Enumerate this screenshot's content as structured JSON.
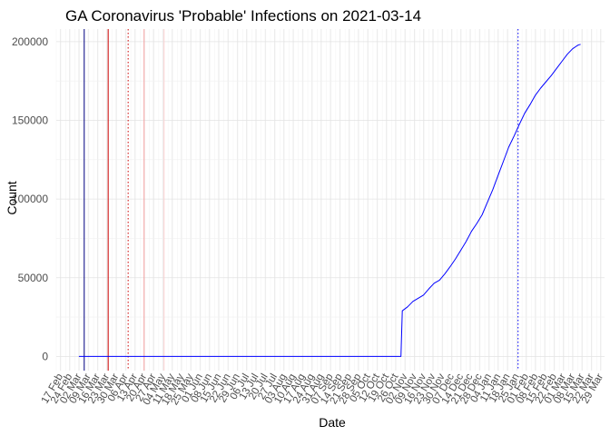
{
  "chart_data": {
    "type": "line",
    "title": "GA Coronavirus 'Probable' Infections on 2021-03-14",
    "xlabel": "Date",
    "ylabel": "Count",
    "xlim": [
      "2020-02-14",
      "2021-04-01"
    ],
    "ylim": [
      -9000,
      208000
    ],
    "grid": true,
    "legend": "none",
    "y_ticks": [
      0,
      50000,
      100000,
      150000,
      200000
    ],
    "x_ticks": [
      {
        "date": "2020-02-17",
        "label": "17 Feb"
      },
      {
        "date": "2020-02-24",
        "label": "24 Feb"
      },
      {
        "date": "2020-03-02",
        "label": "02 Mar"
      },
      {
        "date": "2020-03-09",
        "label": "09 Mar"
      },
      {
        "date": "2020-03-16",
        "label": "16 Mar"
      },
      {
        "date": "2020-03-23",
        "label": "23 Mar"
      },
      {
        "date": "2020-03-30",
        "label": "30 Mar"
      },
      {
        "date": "2020-04-06",
        "label": "06 Apr"
      },
      {
        "date": "2020-04-13",
        "label": "13 Apr"
      },
      {
        "date": "2020-04-20",
        "label": "20 Apr"
      },
      {
        "date": "2020-04-27",
        "label": "27 Apr"
      },
      {
        "date": "2020-05-04",
        "label": "04 May"
      },
      {
        "date": "2020-05-11",
        "label": "11 May"
      },
      {
        "date": "2020-05-18",
        "label": "18 May"
      },
      {
        "date": "2020-05-25",
        "label": "25 May"
      },
      {
        "date": "2020-06-01",
        "label": "01 Jun"
      },
      {
        "date": "2020-06-08",
        "label": "08 Jun"
      },
      {
        "date": "2020-06-15",
        "label": "15 Jun"
      },
      {
        "date": "2020-06-22",
        "label": "22 Jun"
      },
      {
        "date": "2020-06-29",
        "label": "29 Jun"
      },
      {
        "date": "2020-07-06",
        "label": "06 Jul"
      },
      {
        "date": "2020-07-13",
        "label": "13 Jul"
      },
      {
        "date": "2020-07-20",
        "label": "20 Jul"
      },
      {
        "date": "2020-07-27",
        "label": "27 Jul"
      },
      {
        "date": "2020-08-03",
        "label": "03 Aug"
      },
      {
        "date": "2020-08-10",
        "label": "10 Aug"
      },
      {
        "date": "2020-08-17",
        "label": "17 Aug"
      },
      {
        "date": "2020-08-24",
        "label": "24 Aug"
      },
      {
        "date": "2020-08-31",
        "label": "31 Aug"
      },
      {
        "date": "2020-09-07",
        "label": "07 Sep"
      },
      {
        "date": "2020-09-14",
        "label": "14 Sep"
      },
      {
        "date": "2020-09-21",
        "label": "21 Sep"
      },
      {
        "date": "2020-09-28",
        "label": "28 Sep"
      },
      {
        "date": "2020-10-05",
        "label": "05 Oct"
      },
      {
        "date": "2020-10-12",
        "label": "12 Oct"
      },
      {
        "date": "2020-10-19",
        "label": "19 Oct"
      },
      {
        "date": "2020-10-26",
        "label": "26 Oct"
      },
      {
        "date": "2020-11-02",
        "label": "02 Nov"
      },
      {
        "date": "2020-11-09",
        "label": "09 Nov"
      },
      {
        "date": "2020-11-16",
        "label": "16 Nov"
      },
      {
        "date": "2020-11-23",
        "label": "23 Nov"
      },
      {
        "date": "2020-11-30",
        "label": "30 Nov"
      },
      {
        "date": "2020-12-07",
        "label": "07 Dec"
      },
      {
        "date": "2020-12-14",
        "label": "14 Dec"
      },
      {
        "date": "2020-12-21",
        "label": "21 Dec"
      },
      {
        "date": "2020-12-28",
        "label": "28 Dec"
      },
      {
        "date": "2021-01-04",
        "label": "04 Jan"
      },
      {
        "date": "2021-01-11",
        "label": "11 Jan"
      },
      {
        "date": "2021-01-18",
        "label": "18 Jan"
      },
      {
        "date": "2021-01-25",
        "label": "25 Jan"
      },
      {
        "date": "2021-02-01",
        "label": "01 Feb"
      },
      {
        "date": "2021-02-08",
        "label": "08 Feb"
      },
      {
        "date": "2021-02-15",
        "label": "15 Feb"
      },
      {
        "date": "2021-02-22",
        "label": "22 Feb"
      },
      {
        "date": "2021-03-01",
        "label": "01 Mar"
      },
      {
        "date": "2021-03-08",
        "label": "08 Mar"
      },
      {
        "date": "2021-03-15",
        "label": "15 Mar"
      },
      {
        "date": "2021-03-22",
        "label": "22 Mar"
      },
      {
        "date": "2021-03-29",
        "label": "29 Mar"
      }
    ],
    "series": [
      {
        "color": "#0000ff",
        "points": [
          [
            "2020-03-02",
            0
          ],
          [
            "2020-06-01",
            0
          ],
          [
            "2020-09-01",
            0
          ],
          [
            "2020-10-30",
            0
          ],
          [
            "2020-10-31",
            29000
          ],
          [
            "2020-11-04",
            31500
          ],
          [
            "2020-11-08",
            35000
          ],
          [
            "2020-11-12",
            37000
          ],
          [
            "2020-11-16",
            39000
          ],
          [
            "2020-11-20",
            43000
          ],
          [
            "2020-11-24",
            46500
          ],
          [
            "2020-11-28",
            48500
          ],
          [
            "2020-12-02",
            52500
          ],
          [
            "2020-12-06",
            57000
          ],
          [
            "2020-12-10",
            62000
          ],
          [
            "2020-12-14",
            67500
          ],
          [
            "2020-12-18",
            73000
          ],
          [
            "2020-12-22",
            79500
          ],
          [
            "2020-12-26",
            84500
          ],
          [
            "2020-12-30",
            90000
          ],
          [
            "2021-01-03",
            98000
          ],
          [
            "2021-01-07",
            106000
          ],
          [
            "2021-01-11",
            115000
          ],
          [
            "2021-01-15",
            124000
          ],
          [
            "2021-01-19",
            133000
          ],
          [
            "2021-01-23",
            140000
          ],
          [
            "2021-01-27",
            147500
          ],
          [
            "2021-01-31",
            154500
          ],
          [
            "2021-02-04",
            160000
          ],
          [
            "2021-02-08",
            166000
          ],
          [
            "2021-02-12",
            170500
          ],
          [
            "2021-02-16",
            174500
          ],
          [
            "2021-02-20",
            178500
          ],
          [
            "2021-02-24",
            183000
          ],
          [
            "2021-02-28",
            187500
          ],
          [
            "2021-03-04",
            192000
          ],
          [
            "2021-03-08",
            195500
          ],
          [
            "2021-03-12",
            197800
          ],
          [
            "2021-03-14",
            198300
          ]
        ]
      }
    ],
    "vertical_lines": [
      {
        "date": "2020-03-06",
        "color": "#000080",
        "style": "solid"
      },
      {
        "date": "2020-03-24",
        "color": "#cc0000",
        "style": "solid"
      },
      {
        "date": "2020-04-08",
        "color": "#cc0000",
        "style": "dotted"
      },
      {
        "date": "2020-04-20",
        "color": "#f4a0a0",
        "style": "solid"
      },
      {
        "date": "2020-05-05",
        "color": "#fad0d0",
        "style": "solid"
      },
      {
        "date": "2021-01-26",
        "color": "#0000ff",
        "style": "dotted"
      }
    ]
  }
}
